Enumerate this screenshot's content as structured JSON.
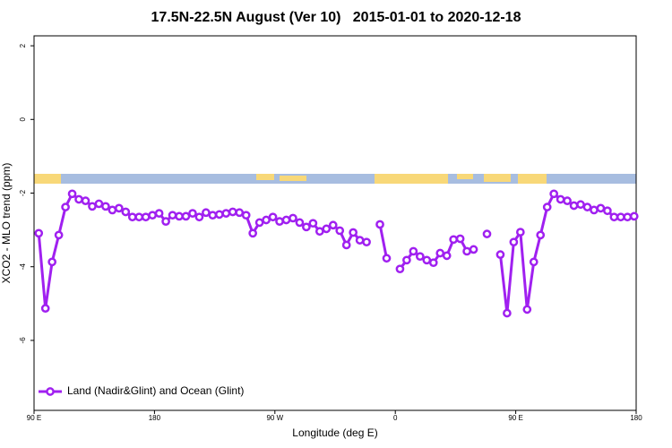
{
  "chart_data": {
    "type": "line",
    "title": "17.5N-22.5N August (Ver 10)   2015-01-01 to 2020-12-18",
    "x_label": "Longitude (deg E)",
    "y_label": "XCO2 - MLO trend (ppm)",
    "xlim": [
      90,
      540
    ],
    "ylim": [
      -7.9,
      2.27
    ],
    "xticks": [
      {
        "value": 90,
        "label": "90 E"
      },
      180,
      {
        "value": 270,
        "label": "90 W"
      },
      {
        "value": 360,
        "label": "0"
      },
      {
        "value": 450,
        "label": "90 E"
      },
      {
        "value": 540,
        "label": "180"
      }
    ],
    "yticks": [
      2,
      0,
      -2,
      -4,
      -6
    ],
    "grid": false,
    "legend": "bottom-left",
    "series": [
      {
        "name": "Land (Nadir&Glint) and Ocean (Glint)",
        "color": "#a020f0",
        "x": [
          93.5,
          98.5,
          103.5,
          108.5,
          113.5,
          118.5,
          123.5,
          128.5,
          133.5,
          138.5,
          143.5,
          148.5,
          153.5,
          158.5,
          163.5,
          168.5,
          173.5,
          178.5,
          183.5,
          188.5,
          193.5,
          198.5,
          203.5,
          208.5,
          213.5,
          218.5,
          223.5,
          228.5,
          233.5,
          238.5,
          243.5,
          248.5,
          253.5,
          258.5,
          263.5,
          268.5,
          273.5,
          278.5,
          283.5,
          288.5,
          293.5,
          298.5,
          303.5,
          308.5,
          313.5,
          318.5,
          323.5,
          328.5,
          333.5,
          338.5,
          343.5,
          348.5,
          353.5,
          358.5,
          363.5,
          368.5,
          373.5,
          378.5,
          383.5,
          388.5,
          393.5,
          398.5,
          403.5,
          408.5,
          413.5,
          418.5,
          423.5,
          428.5,
          433.5,
          438.5,
          443.5,
          448.5,
          453.5,
          458.5,
          463.5,
          468.5,
          473.5,
          478.5,
          483.5,
          488.5,
          493.5,
          498.5,
          503.5,
          508.5,
          513.5,
          518.5,
          523.5,
          528.5,
          533.5,
          538.5
        ],
        "values": [
          -3.09,
          -5.13,
          -3.87,
          -3.14,
          -2.38,
          -2.02,
          -2.17,
          -2.21,
          -2.36,
          -2.29,
          -2.36,
          -2.46,
          -2.41,
          -2.51,
          -2.65,
          -2.65,
          -2.65,
          -2.6,
          -2.55,
          -2.77,
          -2.6,
          -2.63,
          -2.63,
          -2.55,
          -2.65,
          -2.53,
          -2.6,
          -2.58,
          -2.55,
          -2.51,
          -2.53,
          -2.6,
          -3.09,
          -2.8,
          -2.73,
          -2.65,
          -2.77,
          -2.73,
          -2.68,
          -2.8,
          -2.92,
          -2.82,
          -3.04,
          -2.97,
          -2.87,
          -3.02,
          -3.41,
          -3.07,
          -3.28,
          -3.33,
          null,
          -2.85,
          -3.77,
          null,
          -4.06,
          -3.82,
          -3.58,
          -3.72,
          -3.82,
          -3.89,
          -3.63,
          -3.7,
          -3.26,
          -3.24,
          -3.58,
          -3.53,
          null,
          -3.11,
          null,
          -3.67,
          -5.26,
          -3.33,
          -3.06,
          -5.16,
          -3.87,
          -3.14,
          -2.38,
          -2.02,
          -2.17,
          -2.21,
          -2.34,
          -2.31,
          -2.38,
          -2.46,
          -2.41,
          -2.48,
          -2.65,
          -2.65,
          -2.65,
          -2.63
        ]
      }
    ]
  }
}
